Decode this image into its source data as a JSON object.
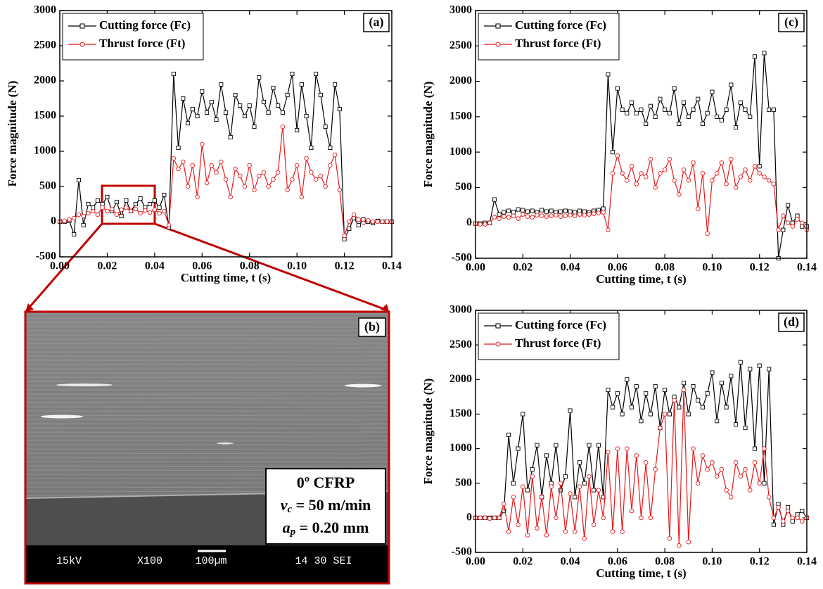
{
  "chart_data": [
    {
      "type": "line",
      "panel": "(a)",
      "xlabel": "Cutting time, t (s)",
      "ylabel": "Force magnitude (N)",
      "legend": "upper left",
      "xlim": [
        0,
        0.14
      ],
      "ylim": [
        -500,
        3000
      ],
      "xticks": [
        {
          "value": 0,
          "label": "0.00"
        },
        {
          "value": 0.02,
          "label": "0.02"
        },
        {
          "value": 0.04,
          "label": "0.04"
        },
        {
          "value": 0.06,
          "label": "0.06"
        },
        {
          "value": 0.08,
          "label": "0.08"
        },
        {
          "value": 0.1,
          "label": "0.10"
        },
        {
          "value": 0.12,
          "label": "0.12"
        },
        {
          "value": 0.14,
          "label": "0.14"
        }
      ],
      "yticks": [
        -500,
        0,
        500,
        1000,
        1500,
        2000,
        2500,
        3000
      ],
      "x": [
        0,
        0.002,
        0.004,
        0.006,
        0.008,
        0.01,
        0.012,
        0.014,
        0.016,
        0.018,
        0.02,
        0.022,
        0.024,
        0.026,
        0.028,
        0.03,
        0.032,
        0.034,
        0.036,
        0.038,
        0.04,
        0.042,
        0.044,
        0.046,
        0.048,
        0.05,
        0.052,
        0.054,
        0.056,
        0.058,
        0.06,
        0.062,
        0.064,
        0.066,
        0.068,
        0.07,
        0.072,
        0.074,
        0.076,
        0.078,
        0.08,
        0.082,
        0.084,
        0.086,
        0.088,
        0.09,
        0.092,
        0.094,
        0.096,
        0.098,
        0.1,
        0.102,
        0.104,
        0.106,
        0.108,
        0.11,
        0.112,
        0.114,
        0.116,
        0.118,
        0.12,
        0.122,
        0.124,
        0.126,
        0.128,
        0.13,
        0.132,
        0.134,
        0.136,
        0.138,
        0.14
      ],
      "series": [
        {
          "name": "Cutting force (Fc)",
          "color": "#000000",
          "marker": "square",
          "values": [
            0,
            0,
            10,
            -180,
            590,
            -50,
            250,
            200,
            300,
            250,
            350,
            150,
            280,
            80,
            300,
            150,
            250,
            330,
            200,
            250,
            300,
            200,
            380,
            -80,
            2100,
            1050,
            1750,
            1400,
            1600,
            1500,
            1850,
            1550,
            1700,
            1450,
            1950,
            1550,
            1200,
            1800,
            1650,
            1500,
            1650,
            1350,
            2050,
            1700,
            1550,
            1900,
            1650,
            1550,
            1800,
            2100,
            1300,
            1950,
            1500,
            1050,
            2100,
            1800,
            1350,
            1050,
            1950,
            1600,
            -250,
            -100,
            50,
            -50,
            30,
            0,
            -20,
            10,
            0,
            0,
            0
          ]
        },
        {
          "name": "Thrust force (Ft)",
          "color": "#e8191b",
          "marker": "circle",
          "values": [
            0,
            10,
            30,
            50,
            100,
            80,
            120,
            150,
            100,
            200,
            150,
            180,
            100,
            170,
            200,
            150,
            180,
            120,
            160,
            130,
            170,
            120,
            150,
            -50,
            900,
            750,
            850,
            500,
            800,
            350,
            1100,
            550,
            800,
            700,
            850,
            600,
            350,
            750,
            650,
            500,
            800,
            450,
            650,
            700,
            500,
            600,
            700,
            1350,
            450,
            600,
            800,
            350,
            900,
            700,
            600,
            650,
            500,
            800,
            950,
            450,
            -200,
            0,
            100,
            30,
            -20,
            20,
            0,
            0,
            0,
            0,
            0
          ]
        }
      ]
    },
    {
      "type": "line",
      "panel": "(c)",
      "xlabel": "Cutting time, t (s)",
      "ylabel": "Force magnitude (N)",
      "legend": "upper left",
      "xlim": [
        0,
        0.14
      ],
      "ylim": [
        -500,
        3000
      ],
      "xticks": [
        {
          "value": 0,
          "label": "0.00"
        },
        {
          "value": 0.02,
          "label": "0.02"
        },
        {
          "value": 0.04,
          "label": "0.04"
        },
        {
          "value": 0.06,
          "label": "0.06"
        },
        {
          "value": 0.08,
          "label": "0.08"
        },
        {
          "value": 0.1,
          "label": "0.10"
        },
        {
          "value": 0.12,
          "label": "0.12"
        },
        {
          "value": 0.14,
          "label": "0.14"
        }
      ],
      "yticks": [
        -500,
        0,
        500,
        1000,
        1500,
        2000,
        2500,
        3000
      ],
      "x": [
        0,
        0.002,
        0.004,
        0.006,
        0.008,
        0.01,
        0.012,
        0.014,
        0.016,
        0.018,
        0.02,
        0.022,
        0.024,
        0.026,
        0.028,
        0.03,
        0.032,
        0.034,
        0.036,
        0.038,
        0.04,
        0.042,
        0.044,
        0.046,
        0.048,
        0.05,
        0.052,
        0.054,
        0.056,
        0.058,
        0.06,
        0.062,
        0.064,
        0.066,
        0.068,
        0.07,
        0.072,
        0.074,
        0.076,
        0.078,
        0.08,
        0.082,
        0.084,
        0.086,
        0.088,
        0.09,
        0.092,
        0.094,
        0.096,
        0.098,
        0.1,
        0.102,
        0.104,
        0.106,
        0.108,
        0.11,
        0.112,
        0.114,
        0.116,
        0.118,
        0.12,
        0.122,
        0.124,
        0.126,
        0.128,
        0.13,
        0.132,
        0.134,
        0.136,
        0.138,
        0.14
      ],
      "series": [
        {
          "name": "Cutting force (Fc)",
          "color": "#000000",
          "marker": "square",
          "values": [
            -10,
            -10,
            0,
            0,
            330,
            120,
            150,
            170,
            150,
            190,
            180,
            160,
            170,
            150,
            180,
            160,
            170,
            150,
            160,
            170,
            160,
            150,
            170,
            160,
            150,
            170,
            180,
            200,
            2100,
            1000,
            1900,
            1600,
            1550,
            1700,
            1550,
            1600,
            1400,
            1650,
            1500,
            1750,
            1600,
            1550,
            1900,
            1400,
            1700,
            1500,
            1600,
            1750,
            1400,
            1550,
            1850,
            1500,
            1450,
            1600,
            1950,
            1350,
            1700,
            1600,
            1500,
            2350,
            800,
            2400,
            1600,
            1600,
            -500,
            -100,
            250,
            0,
            100,
            -50,
            -50
          ]
        },
        {
          "name": "Thrust force (Ft)",
          "color": "#e8191b",
          "marker": "circle",
          "values": [
            -10,
            -20,
            -20,
            0,
            80,
            60,
            90,
            80,
            100,
            60,
            120,
            90,
            80,
            110,
            100,
            90,
            100,
            110,
            90,
            100,
            110,
            100,
            120,
            110,
            120,
            130,
            140,
            150,
            -100,
            700,
            950,
            700,
            600,
            800,
            550,
            700,
            650,
            900,
            500,
            700,
            750,
            900,
            600,
            400,
            750,
            600,
            850,
            200,
            700,
            -150,
            600,
            700,
            850,
            550,
            900,
            500,
            650,
            750,
            600,
            800,
            700,
            650,
            600,
            550,
            -100,
            100,
            0,
            -50,
            50,
            0,
            -100
          ]
        }
      ]
    },
    {
      "type": "line",
      "panel": "(d)",
      "xlabel": "Cutting time, t (s)",
      "ylabel": "Force magnitude (N)",
      "legend": "upper left",
      "xlim": [
        0,
        0.14
      ],
      "ylim": [
        -500,
        3000
      ],
      "xticks": [
        {
          "value": 0,
          "label": "0.00"
        },
        {
          "value": 0.02,
          "label": "0.02"
        },
        {
          "value": 0.04,
          "label": "0.04"
        },
        {
          "value": 0.06,
          "label": "0.06"
        },
        {
          "value": 0.08,
          "label": "0.08"
        },
        {
          "value": 0.1,
          "label": "0.10"
        },
        {
          "value": 0.12,
          "label": "0.12"
        },
        {
          "value": 0.14,
          "label": "0.14"
        }
      ],
      "yticks": [
        -500,
        0,
        500,
        1000,
        1500,
        2000,
        2500,
        3000
      ],
      "x": [
        0,
        0.002,
        0.004,
        0.006,
        0.008,
        0.01,
        0.012,
        0.014,
        0.016,
        0.018,
        0.02,
        0.022,
        0.024,
        0.026,
        0.028,
        0.03,
        0.032,
        0.034,
        0.036,
        0.038,
        0.04,
        0.042,
        0.044,
        0.046,
        0.048,
        0.05,
        0.052,
        0.054,
        0.056,
        0.058,
        0.06,
        0.062,
        0.064,
        0.066,
        0.068,
        0.07,
        0.072,
        0.074,
        0.076,
        0.078,
        0.08,
        0.082,
        0.084,
        0.086,
        0.088,
        0.09,
        0.092,
        0.094,
        0.096,
        0.098,
        0.1,
        0.102,
        0.104,
        0.106,
        0.108,
        0.11,
        0.112,
        0.114,
        0.116,
        0.118,
        0.12,
        0.122,
        0.124,
        0.126,
        0.128,
        0.13,
        0.132,
        0.134,
        0.136,
        0.138,
        0.14
      ],
      "series": [
        {
          "name": "Cutting force (Fc)",
          "color": "#000000",
          "marker": "square",
          "values": [
            0,
            0,
            0,
            0,
            0,
            0,
            100,
            1200,
            500,
            1000,
            1500,
            400,
            700,
            1050,
            300,
            900,
            500,
            1050,
            400,
            600,
            1550,
            300,
            800,
            500,
            1050,
            400,
            1050,
            300,
            1850,
            1600,
            1800,
            1500,
            2000,
            1600,
            1900,
            1400,
            1800,
            1500,
            1900,
            1300,
            1850,
            1500,
            1750,
            1600,
            1950,
            1500,
            1900,
            1700,
            1600,
            1800,
            2100,
            1400,
            1950,
            1600,
            2050,
            1350,
            2250,
            1300,
            2150,
            1000,
            2200,
            500,
            2150,
            -100,
            200,
            -100,
            150,
            -50,
            50,
            100,
            0
          ]
        },
        {
          "name": "Thrust force (Ft)",
          "color": "#e8191b",
          "marker": "circle",
          "values": [
            0,
            0,
            0,
            -10,
            0,
            0,
            200,
            -200,
            300,
            -100,
            450,
            -250,
            600,
            -150,
            300,
            -250,
            450,
            0,
            500,
            -200,
            350,
            -200,
            450,
            -300,
            600,
            -100,
            400,
            0,
            950,
            -200,
            1000,
            -200,
            1000,
            100,
            900,
            0,
            800,
            0,
            700,
            1300,
            1500,
            -300,
            1700,
            -400,
            1850,
            -350,
            1000,
            500,
            900,
            700,
            800,
            600,
            700,
            400,
            300,
            800,
            600,
            700,
            400,
            800,
            500,
            1000,
            300,
            0,
            150,
            -50,
            100,
            0,
            0,
            -50,
            0
          ]
        }
      ]
    }
  ],
  "image_panel": {
    "label": "(b)",
    "material": "0º CFRP",
    "cutting_speed": {
      "symbol": "v",
      "subscript": "c",
      "value": " = 50 m/min"
    },
    "depth": {
      "symbol": "a",
      "subscript": "p",
      "value": " = 0.20 mm"
    },
    "info_bar": [
      "15kV",
      "X100",
      "100µm",
      "14 30 SEI"
    ]
  }
}
